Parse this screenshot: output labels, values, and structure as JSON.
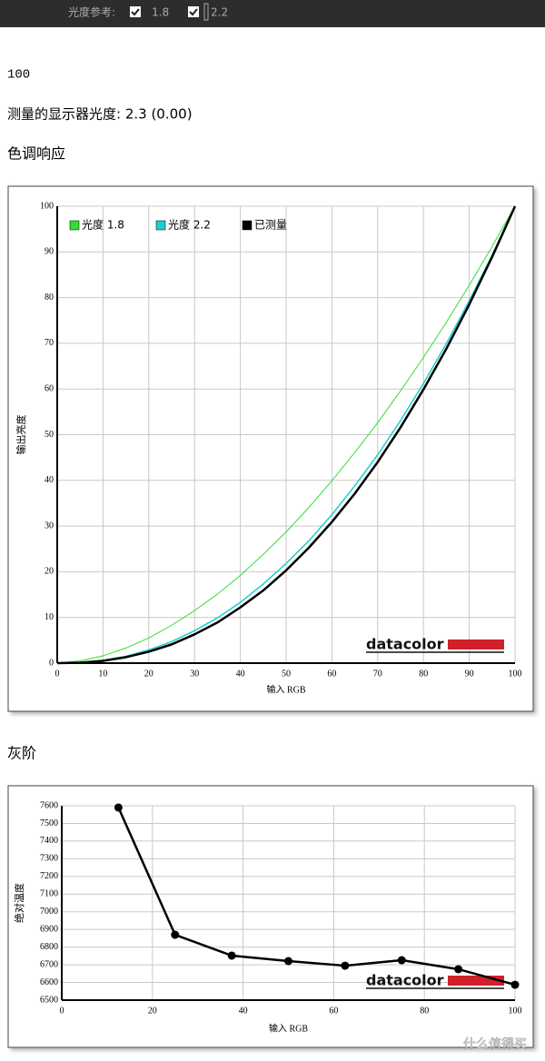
{
  "toolbar": {
    "label": "光度参考:",
    "options": [
      "1.8",
      "2.2"
    ]
  },
  "lines": [
    "100",
    "测量的显示器光度: 2.3 (0.00)"
  ],
  "watermark": "什么值得买",
  "chart_data": [
    {
      "type": "line",
      "title": "色调响应",
      "xlabel": "输入 RGB",
      "ylabel": "输出亮度",
      "logo": "datacolor",
      "grid": true,
      "legend": "upper left",
      "x": [
        0,
        5,
        10,
        15,
        20,
        25,
        30,
        35,
        40,
        45,
        50,
        55,
        60,
        65,
        70,
        75,
        80,
        85,
        90,
        95,
        100
      ],
      "xlim": [
        0,
        100
      ],
      "xticks": [
        0,
        10,
        20,
        30,
        40,
        50,
        60,
        70,
        80,
        90,
        100
      ],
      "ylim": [
        0,
        100
      ],
      "yticks": [
        0,
        10,
        20,
        30,
        40,
        50,
        60,
        70,
        80,
        90,
        100
      ],
      "series": [
        {
          "name": "光度 1.8",
          "color": "#33dd33",
          "values": [
            0,
            0.5,
            1.6,
            3.3,
            5.5,
            8.3,
            11.5,
            15.1,
            19.2,
            23.8,
            28.7,
            34.1,
            39.9,
            46.1,
            52.6,
            59.6,
            66.9,
            74.6,
            82.7,
            91.2,
            100
          ]
        },
        {
          "name": "光度 2.2",
          "color": "#22cccc",
          "values": [
            0,
            0.1,
            0.6,
            1.5,
            2.9,
            4.7,
            7.1,
            9.9,
            13.3,
            17.3,
            21.8,
            26.8,
            32.5,
            38.8,
            45.6,
            53.1,
            61.2,
            69.9,
            79.3,
            89.3,
            100
          ]
        },
        {
          "name": "已测量",
          "color": "#000000",
          "values": [
            0,
            0.1,
            0.5,
            1.3,
            2.5,
            4.1,
            6.3,
            8.9,
            12.2,
            15.9,
            20.3,
            25.3,
            30.9,
            37.1,
            44.0,
            51.6,
            59.9,
            68.8,
            78.5,
            88.9,
            100
          ]
        }
      ]
    },
    {
      "type": "line",
      "title": "灰阶",
      "xlabel": "输入 RGB",
      "ylabel": "绝对温度",
      "logo": "datacolor",
      "grid": true,
      "markers": true,
      "x": [
        12.5,
        25,
        37.5,
        50,
        62.5,
        75,
        87.5,
        100
      ],
      "xlim": [
        0,
        100
      ],
      "xticks": [
        0,
        20,
        40,
        60,
        80,
        100
      ],
      "ylim": [
        6500,
        7600
      ],
      "yticks": [
        6500,
        6600,
        6700,
        6800,
        6900,
        7000,
        7100,
        7200,
        7300,
        7400,
        7500,
        7600
      ],
      "series": [
        {
          "color": "#000000",
          "values": [
            7590,
            6870,
            6752,
            6721,
            6695,
            6726,
            6675,
            6587
          ]
        }
      ]
    }
  ]
}
